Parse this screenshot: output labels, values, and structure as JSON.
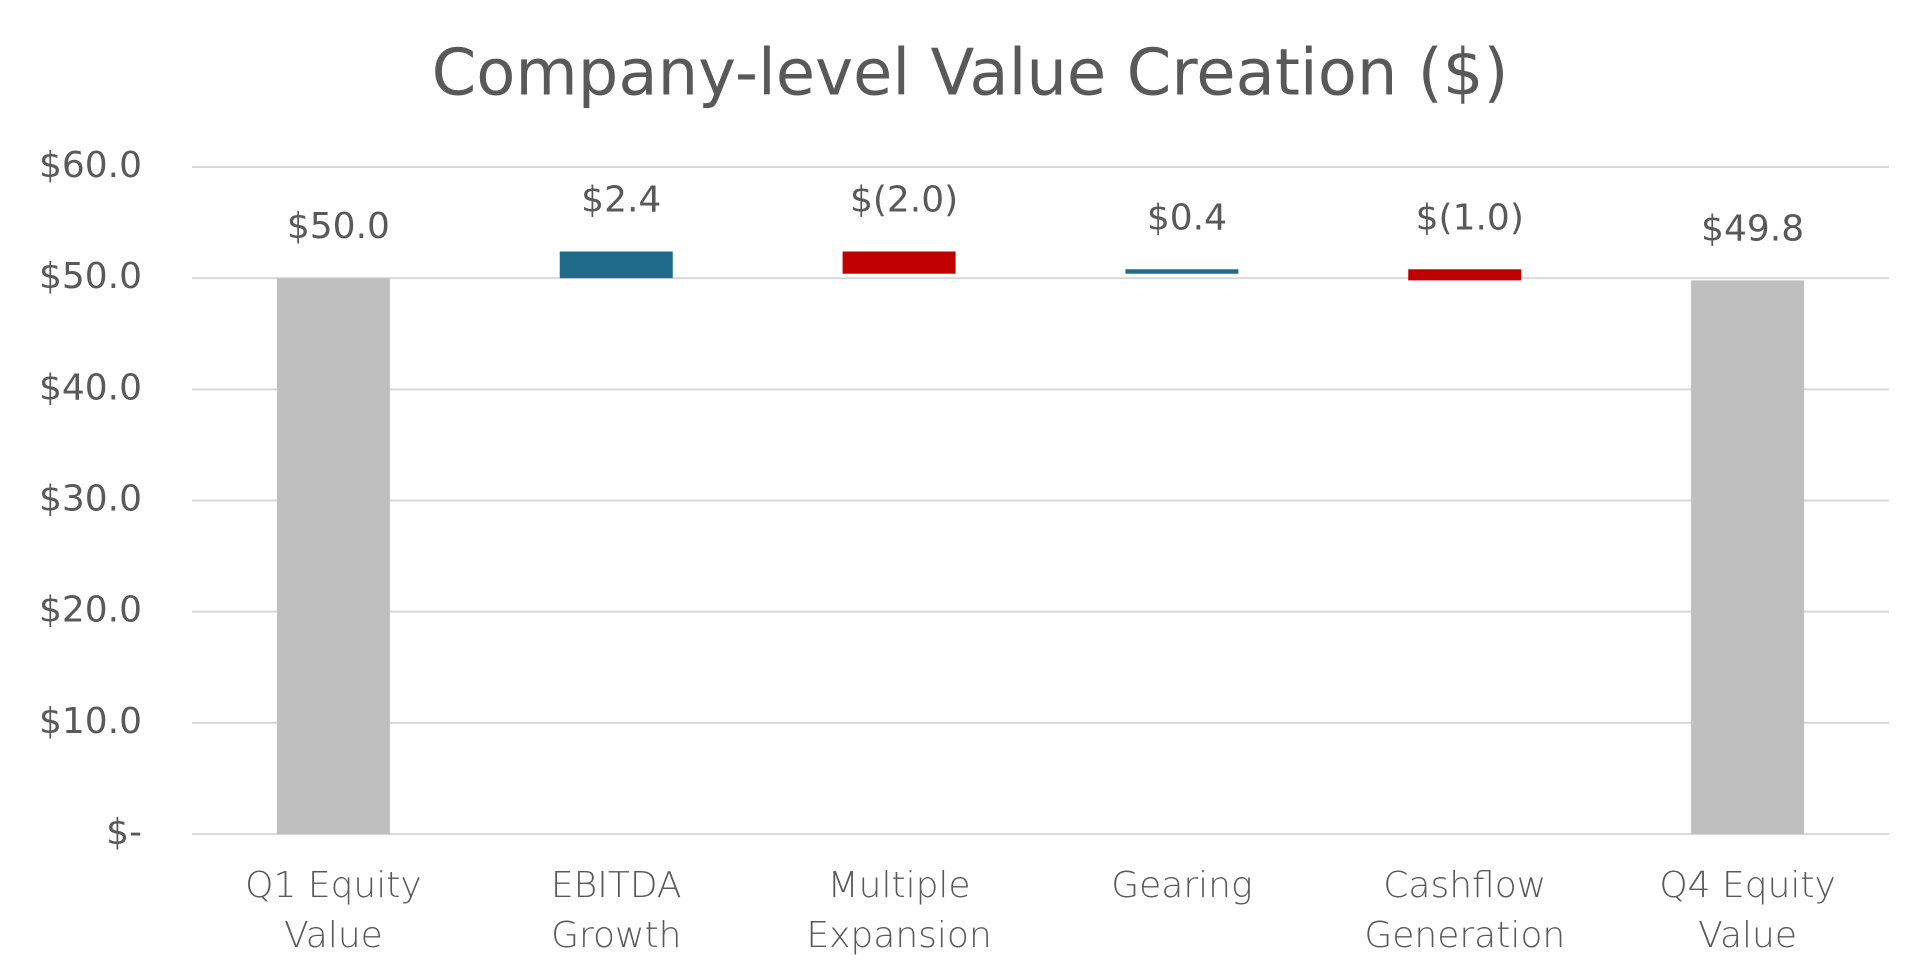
{
  "chart_data": {
    "type": "waterfall",
    "title": "Company-level Value Creation ($)",
    "categories": [
      "Q1 Equity Value",
      "EBITDA Growth",
      "Multiple Expansion",
      "Gearing",
      "Cashflow Generation",
      "Q4 Equity Value"
    ],
    "values": [
      50.0,
      2.4,
      -2.0,
      0.4,
      -1.0,
      49.8
    ],
    "value_labels": [
      "$50.0",
      "$2.4",
      "$(2.0)",
      "$0.4",
      "$(1.0)",
      "$49.8"
    ],
    "totals": [
      true,
      false,
      false,
      false,
      false,
      true
    ],
    "colors": {
      "total": "#bfbfbf",
      "increase": "#1f6b8a",
      "decrease": "#c00000"
    },
    "ylim": [
      0,
      60
    ],
    "yticks": [
      {
        "value": 0,
        "label": "$-"
      },
      {
        "value": 10,
        "label": "$10.0"
      },
      {
        "value": 20,
        "label": "$20.0"
      },
      {
        "value": 30,
        "label": "$30.0"
      },
      {
        "value": 40,
        "label": "$40.0"
      },
      {
        "value": 50,
        "label": "$50.0"
      },
      {
        "value": 60,
        "label": "$60.0"
      }
    ],
    "grid": true
  }
}
